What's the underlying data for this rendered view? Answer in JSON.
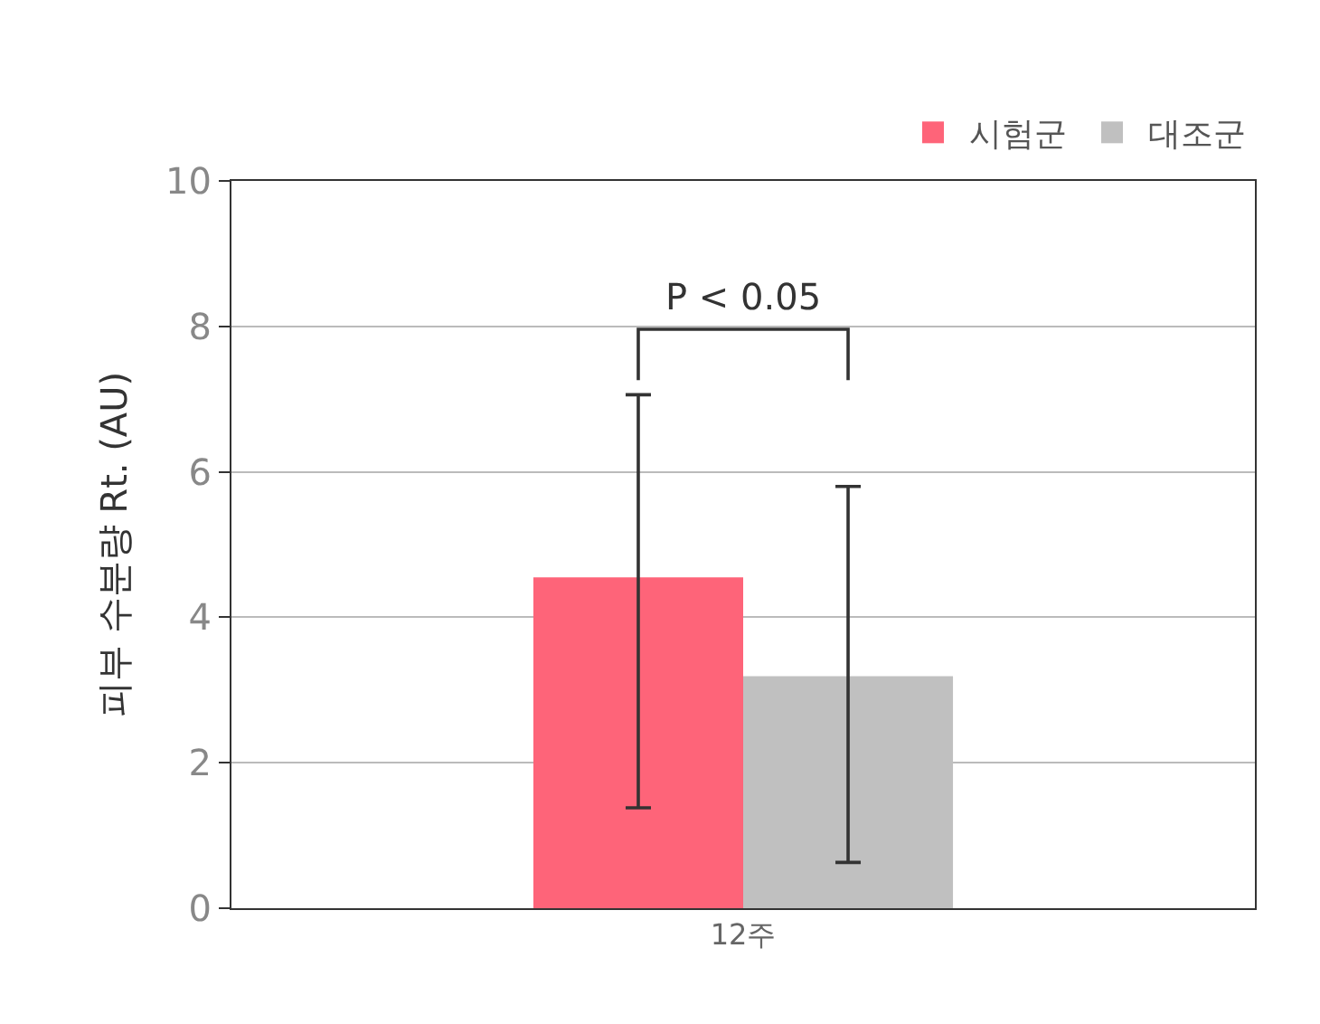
{
  "chart_data": {
    "type": "bar",
    "ylabel": "피부 수분량 Rt. (AU)",
    "categories": [
      "12주"
    ],
    "series": [
      {
        "name": "시험군",
        "color": "#fe6479",
        "values": [
          4.55
        ],
        "errors": [
          [
            1.38,
            7.06
          ]
        ]
      },
      {
        "name": "대조군",
        "color": "#c0c0c0",
        "values": [
          3.19
        ],
        "errors": [
          [
            0.63,
            5.8
          ]
        ]
      }
    ],
    "ylim": [
      0,
      10
    ],
    "yticks": [
      0,
      2,
      4,
      6,
      8,
      10
    ],
    "grid": "y",
    "legend": "top right",
    "annotations": [
      "P < 0.05"
    ]
  }
}
